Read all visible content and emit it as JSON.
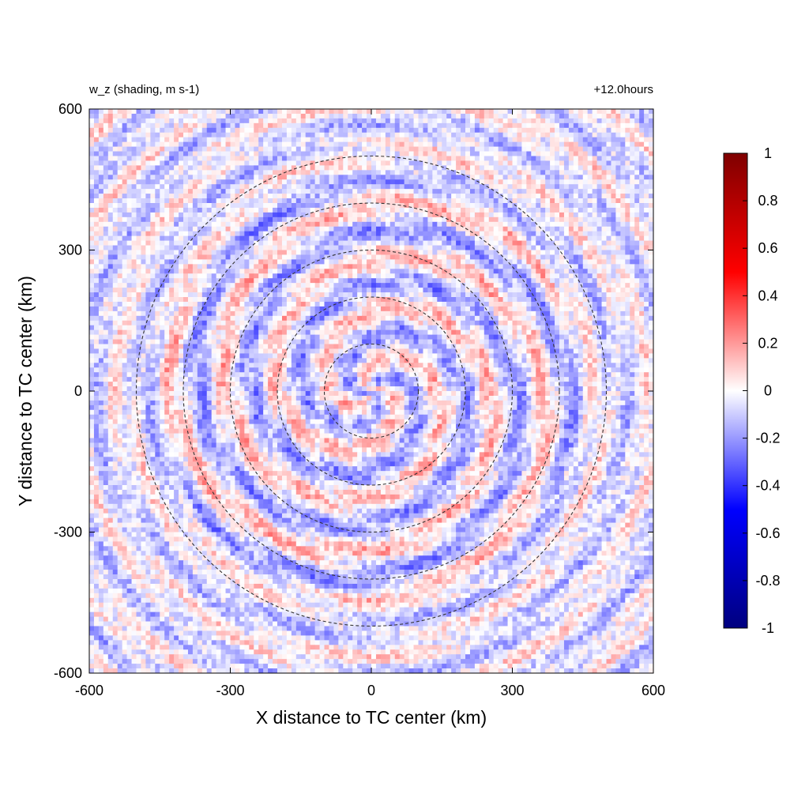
{
  "chart_data": {
    "type": "heatmap",
    "title_left": "w_z (shading, m s-1)",
    "title_right": "+12.0hours",
    "xlabel": "X distance to TC center (km)",
    "ylabel": "Y distance to TC center (km)",
    "xlim": [
      -600,
      600
    ],
    "ylim": [
      -600,
      600
    ],
    "xticks": [
      -600,
      -300,
      0,
      300,
      600
    ],
    "yticks": [
      -600,
      -300,
      0,
      300,
      600
    ],
    "xtick_labels": [
      "-600",
      "-300",
      "0",
      "300",
      "600"
    ],
    "ytick_labels": [
      "-600",
      "-300",
      "0",
      "300",
      "600"
    ],
    "colorbar": {
      "min": -1,
      "max": 1,
      "ticks": [
        1,
        0.8,
        0.6,
        0.4,
        0.2,
        0,
        -0.2,
        -0.4,
        -0.6,
        -0.8,
        -1
      ],
      "tick_labels": [
        "1",
        "0.8",
        "0.6",
        "0.4",
        "0.2",
        "0",
        "-0.2",
        "-0.4",
        "-0.6",
        "-0.8",
        "-1"
      ],
      "colormap": [
        "#00007f",
        "#0000ff",
        "#ffffff",
        "#ff0000",
        "#7f0000"
      ]
    },
    "field_description": "weak vertical velocity, mostly between -0.3 and 0.3 m s-1",
    "field_range": [
      -0.4,
      0.3
    ],
    "contours": {
      "style": "dashed",
      "color": "#333333",
      "radii_km": [
        100,
        200,
        300,
        400,
        500
      ]
    },
    "grid": false
  }
}
